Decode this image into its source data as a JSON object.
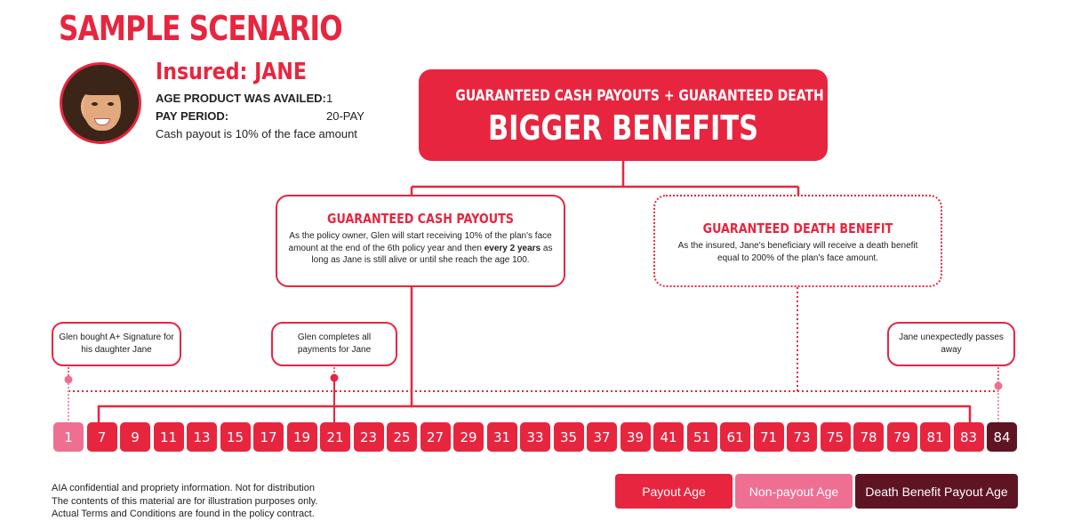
{
  "title": "SAMPLE SCENARIO",
  "insured": {
    "title": "Insured: JANE",
    "age_label": "AGE PRODUCT WAS AVAILED:",
    "age_value": "1",
    "pay_label": "PAY PERIOD:",
    "pay_value": "20-PAY",
    "payout_note": "Cash payout is 10% of the face amount"
  },
  "main_box": {
    "line1": "GUARANTEED CASH PAYOUTS + GUARANTEED DEATH BENEFIT =",
    "line2": "BIGGER BENEFITS"
  },
  "cash_box": {
    "heading": "GUARANTEED CASH PAYOUTS",
    "body_1": "As the policy owner, Glen will start receiving 10% of the plan's face amount at the end of the 6th policy year and then ",
    "body_bold": "every 2 years",
    "body_2": " as long as Jane is still alive or until she reach the age 100."
  },
  "death_box": {
    "heading": "GUARANTEED DEATH BENEFIT",
    "body": "As the insured, Jane's beneficiary will receive a death benefit equal to 200% of the plan's face amount."
  },
  "callouts": {
    "bought": "Glen bought A+ Signature for his daughter Jane",
    "completes": "Glen completes all payments for Jane",
    "passes": "Jane unexpectedly passes away"
  },
  "timeline": {
    "ages": [
      "1",
      "7",
      "9",
      "11",
      "13",
      "15",
      "17",
      "19",
      "21",
      "23",
      "25",
      "27",
      "29",
      "31",
      "33",
      "35",
      "37",
      "39",
      "41",
      "51",
      "61",
      "71",
      "73",
      "75",
      "78",
      "79",
      "81",
      "83",
      "84"
    ],
    "non_payout_age": "1",
    "death_age": "84"
  },
  "colors": {
    "payout": "#e8253f",
    "non_payout": "#ef6f93",
    "death_benefit": "#5e1423"
  },
  "legend": {
    "payout": "Payout Age",
    "non_payout": "Non-payout Age",
    "death_benefit": "Death Benefit Payout Age"
  },
  "disclaimer": {
    "line1": "AIA confidential and propriety information. Not for distribution",
    "line2": "The contents of this material are for illustration purposes only.",
    "line3": "Actual Terms and Conditions are found in the policy contract."
  }
}
